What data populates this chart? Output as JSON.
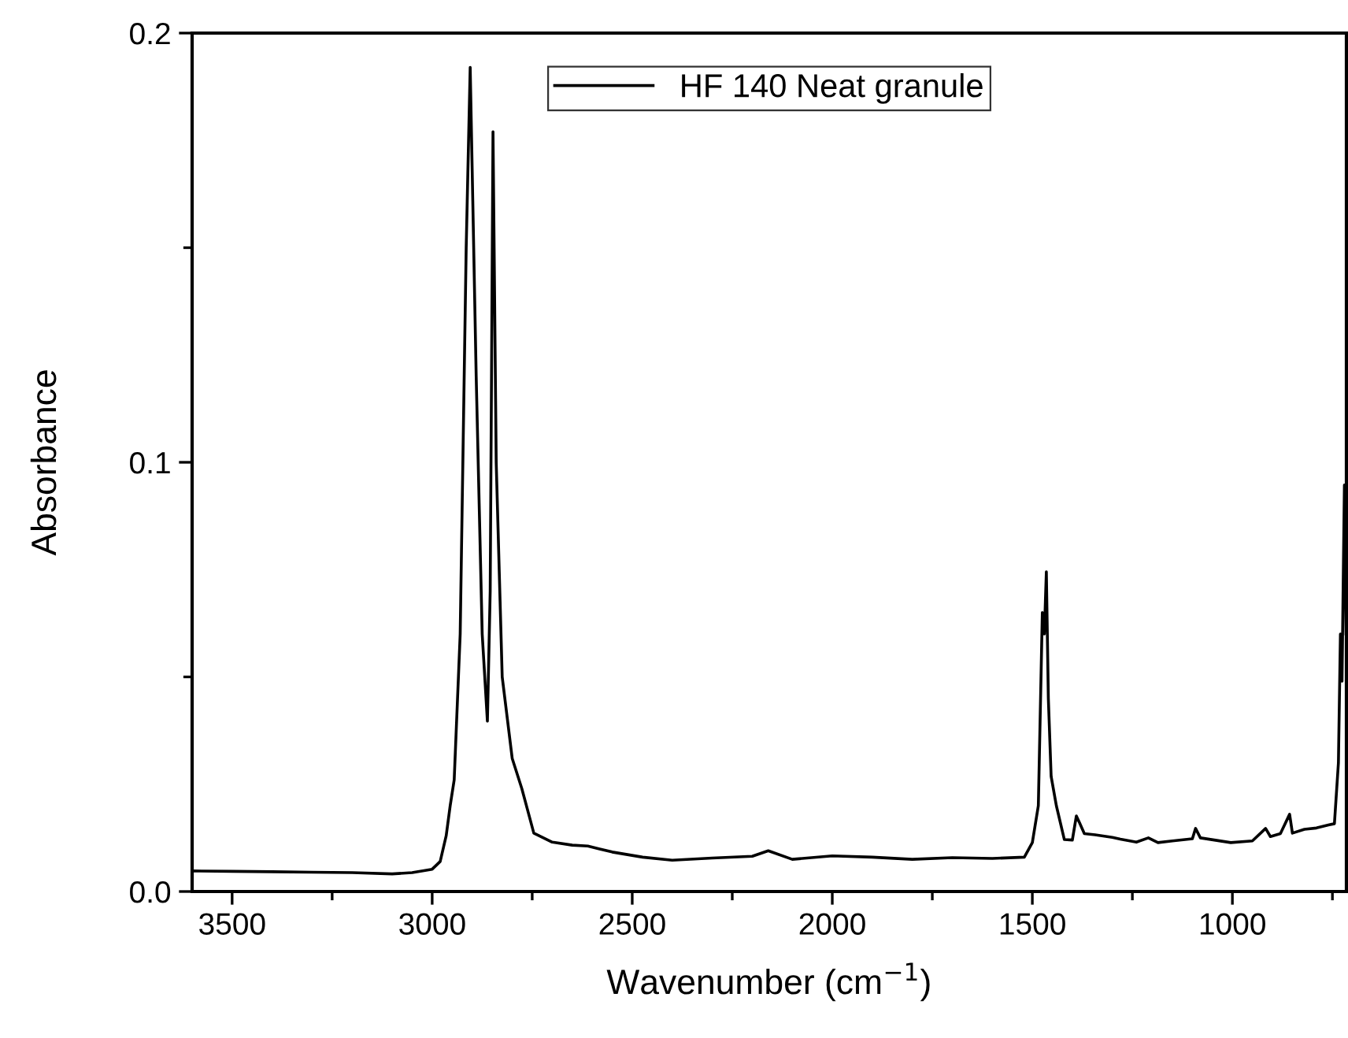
{
  "chart_data": {
    "type": "line",
    "xlabel": "Wavenumber (cm$^{−1}$)",
    "ylabel": "Absorbance",
    "xlim": [
      3600,
      715
    ],
    "xticks": [
      3500,
      3000,
      2500,
      2000,
      1500,
      1000
    ],
    "ylim": [
      0,
      0.2
    ],
    "yticks": [
      {
        "value": 0,
        "label": "0.0"
      },
      0.1,
      0.2
    ],
    "legend": "top",
    "grid": false,
    "marker": "none",
    "line_style": "solid",
    "series": [
      {
        "name": "HF 140 Neat granule",
        "color": "#000000",
        "x": [
          3600,
          3500,
          3400,
          3300,
          3200,
          3100,
          3050,
          3000,
          2980,
          2965,
          2955,
          2945,
          2930,
          2915,
          2905,
          2890,
          2875,
          2862,
          2855,
          2848,
          2840,
          2825,
          2800,
          2776,
          2746,
          2700,
          2650,
          2611,
          2550,
          2474,
          2400,
          2300,
          2200,
          2160,
          2100,
          2000,
          1900,
          1800,
          1700,
          1600,
          1520,
          1500,
          1485,
          1475,
          1470,
          1465,
          1460,
          1453,
          1440,
          1420,
          1400,
          1390,
          1382,
          1370,
          1343,
          1300,
          1280,
          1240,
          1210,
          1186,
          1150,
          1100,
          1092,
          1080,
          1004,
          950,
          917,
          905,
          880,
          857,
          850,
          820,
          790,
          760,
          745,
          735,
          730,
          726,
          722,
          720,
          716
        ],
        "values": [
          0.0048,
          0.0047,
          0.0046,
          0.0045,
          0.0044,
          0.0041,
          0.0044,
          0.0052,
          0.007,
          0.013,
          0.02,
          0.026,
          0.06,
          0.15,
          0.192,
          0.12,
          0.06,
          0.0397,
          0.07,
          0.177,
          0.1,
          0.05,
          0.031,
          0.024,
          0.0136,
          0.0115,
          0.0108,
          0.0106,
          0.0092,
          0.008,
          0.0073,
          0.0078,
          0.0082,
          0.0095,
          0.0075,
          0.0083,
          0.008,
          0.0075,
          0.0079,
          0.0077,
          0.008,
          0.0114,
          0.02,
          0.065,
          0.06,
          0.0745,
          0.045,
          0.0268,
          0.02,
          0.0121,
          0.012,
          0.0176,
          0.016,
          0.0135,
          0.0132,
          0.0126,
          0.0122,
          0.0115,
          0.0125,
          0.0114,
          0.0118,
          0.0123,
          0.0147,
          0.0125,
          0.0114,
          0.0118,
          0.0147,
          0.0128,
          0.0135,
          0.018,
          0.0136,
          0.0145,
          0.0148,
          0.0155,
          0.0158,
          0.03,
          0.06,
          0.049,
          0.08,
          0.0947,
          0.06
        ]
      }
    ]
  }
}
